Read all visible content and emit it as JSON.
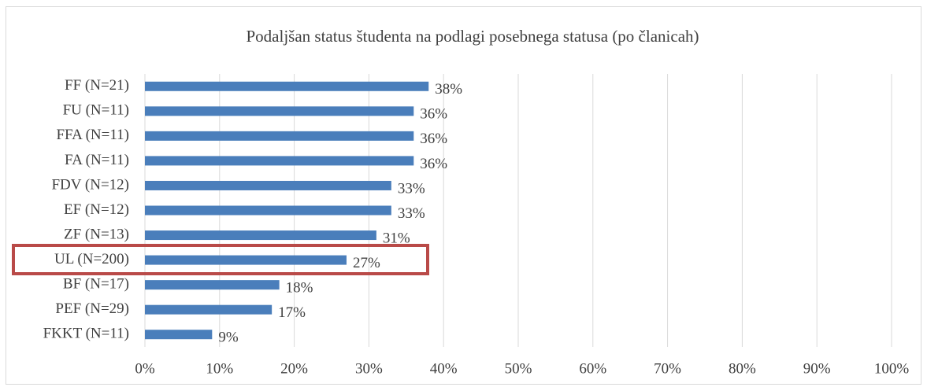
{
  "chart_data": {
    "type": "bar",
    "orientation": "horizontal",
    "title": "Podaljšan status študenta na podlagi posebnega statusa (po članicah)",
    "categories": [
      "FF (N=21)",
      "FU (N=11)",
      "FFA (N=11)",
      "FA (N=11)",
      "FDV (N=12)",
      "EF (N=12)",
      "ZF (N=13)",
      "UL (N=200)",
      "BF (N=17)",
      "PEF (N=29)",
      "FKKT (N=11)"
    ],
    "values": [
      38,
      36,
      36,
      36,
      33,
      33,
      31,
      27,
      18,
      17,
      9
    ],
    "value_labels": [
      "38%",
      "36%",
      "36%",
      "36%",
      "33%",
      "33%",
      "31%",
      "27%",
      "18%",
      "17%",
      "9%"
    ],
    "color": "#4a7ebb",
    "xlim": [
      0,
      100
    ],
    "xticks": [
      {
        "value": 0,
        "label": "0%"
      },
      {
        "value": 10,
        "label": "10%"
      },
      {
        "value": 20,
        "label": "20%"
      },
      {
        "value": 30,
        "label": "30%"
      },
      {
        "value": 40,
        "label": "40%"
      },
      {
        "value": 50,
        "label": "50%"
      },
      {
        "value": 60,
        "label": "60%"
      },
      {
        "value": 70,
        "label": "70%"
      },
      {
        "value": 80,
        "label": "80%"
      },
      {
        "value": 90,
        "label": "90%"
      },
      {
        "value": 100,
        "label": "100%"
      }
    ],
    "grid": true
  }
}
